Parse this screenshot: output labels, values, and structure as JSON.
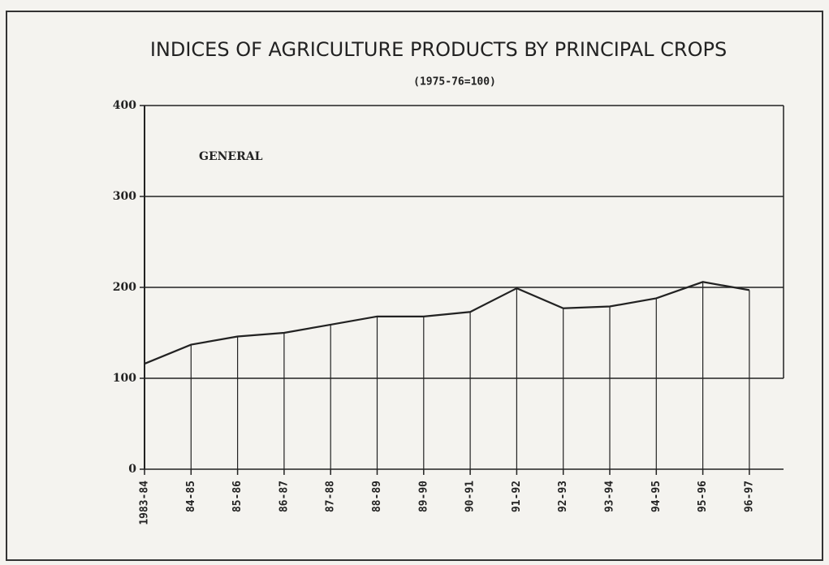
{
  "chart_data": {
    "type": "line",
    "title": "INDICES OF AGRICULTURE PRODUCTS BY PRINCIPAL CROPS",
    "subtitle": "(1975-76=100)",
    "categories": [
      "1983-84",
      "84-85",
      "85-86",
      "86-87",
      "87-88",
      "88-89",
      "89-90",
      "90-91",
      "91-92",
      "92-93",
      "93-94",
      "94-95",
      "95-96",
      "96-97"
    ],
    "series": [
      {
        "name": "GENERAL",
        "color": "#222222",
        "values": [
          116,
          137,
          146,
          150,
          159,
          168,
          168,
          173,
          199,
          177,
          179,
          188,
          206,
          197
        ]
      }
    ],
    "ylim": [
      0,
      400
    ],
    "yticks": [
      0,
      100,
      200,
      300,
      400
    ],
    "grid": true
  }
}
